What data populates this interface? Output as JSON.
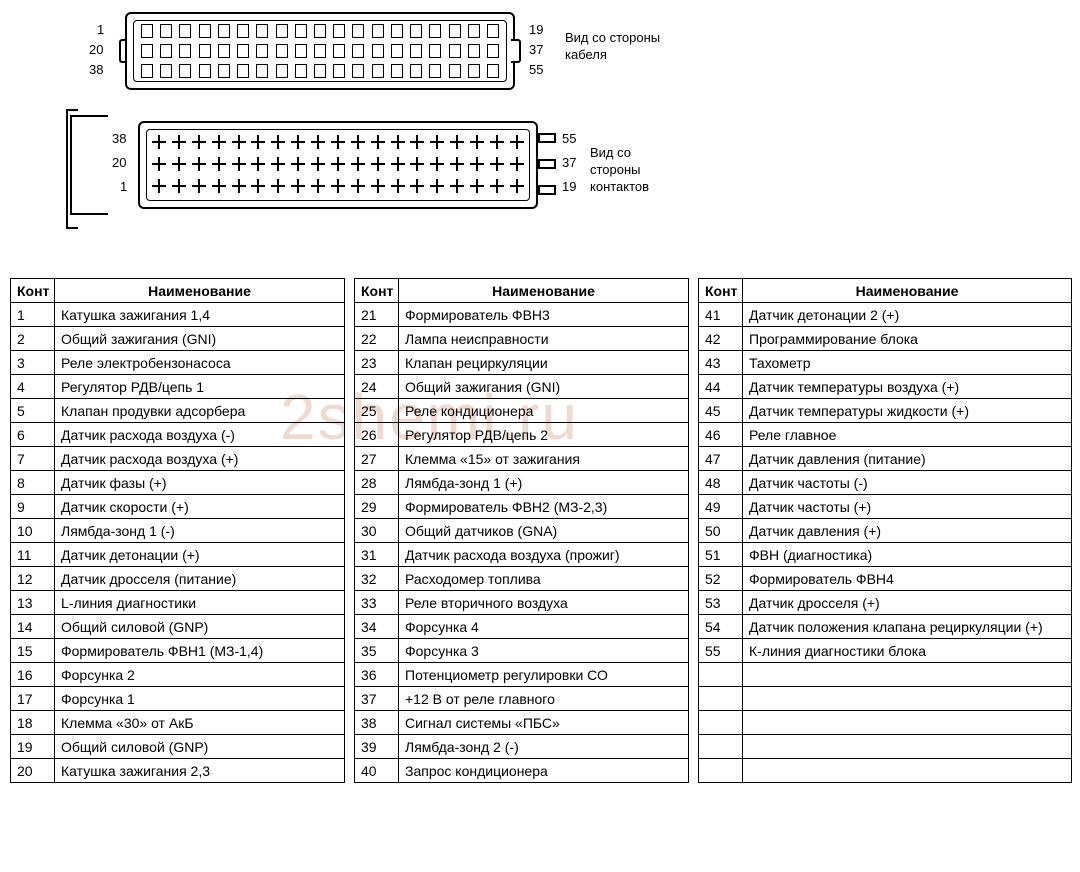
{
  "diagram": {
    "top": {
      "left_labels": [
        "1",
        "20",
        "38"
      ],
      "right_labels": [
        "19",
        "37",
        "55"
      ],
      "caption_line1": "Вид со стороны",
      "caption_line2": "кабеля",
      "pins_per_row": 19
    },
    "bottom": {
      "left_labels": [
        "38",
        "20",
        "1"
      ],
      "right_labels": [
        "55",
        "37",
        "19"
      ],
      "caption_line1": "Вид со стороны",
      "caption_line2": "контактов",
      "pins_per_row": 19
    }
  },
  "watermark": "2shemi.ru",
  "table": {
    "header_pin": "Конт",
    "header_name": "Наименование",
    "columns": [
      [
        {
          "n": "1",
          "t": "Катушка зажигания 1,4"
        },
        {
          "n": "2",
          "t": "Общий зажигания (GNI)"
        },
        {
          "n": "3",
          "t": "Реле электробензонасоса"
        },
        {
          "n": "4",
          "t": "Регулятор РДВ/цепь 1"
        },
        {
          "n": "5",
          "t": "Клапан продувки адсорбера"
        },
        {
          "n": "6",
          "t": "Датчик расхода воздуха (-)"
        },
        {
          "n": "7",
          "t": "Датчик расхода воздуха (+)"
        },
        {
          "n": "8",
          "t": "Датчик фазы (+)"
        },
        {
          "n": "9",
          "t": "Датчик скорости (+)"
        },
        {
          "n": "10",
          "t": "Лямбда-зонд 1 (-)"
        },
        {
          "n": "11",
          "t": "Датчик детонации (+)"
        },
        {
          "n": "12",
          "t": "Датчик дросселя (питание)"
        },
        {
          "n": "13",
          "t": "L-линия диагностики"
        },
        {
          "n": "14",
          "t": "Общий силовой (GNP)"
        },
        {
          "n": "15",
          "t": "Формирователь ФВН1 (МЗ-1,4)"
        },
        {
          "n": "16",
          "t": "Форсунка 2"
        },
        {
          "n": "17",
          "t": "Форсунка 1"
        },
        {
          "n": "18",
          "t": "Клемма «30» от АкБ"
        },
        {
          "n": "19",
          "t": "Общий силовой (GNP)"
        },
        {
          "n": "20",
          "t": "Катушка зажигания 2,3"
        }
      ],
      [
        {
          "n": "21",
          "t": "Формирователь ФВН3"
        },
        {
          "n": "22",
          "t": "Лампа неисправности"
        },
        {
          "n": "23",
          "t": "Клапан рециркуляции"
        },
        {
          "n": "24",
          "t": "Общий зажигания (GNI)"
        },
        {
          "n": "25",
          "t": "Реле кондиционера"
        },
        {
          "n": "26",
          "t": "Регулятор РДВ/цепь 2"
        },
        {
          "n": "27",
          "t": "Клемма «15» от зажигания"
        },
        {
          "n": "28",
          "t": "Лямбда-зонд 1 (+)"
        },
        {
          "n": "29",
          "t": "Формирователь ФВН2 (МЗ-2,3)"
        },
        {
          "n": "30",
          "t": "Общий датчиков (GNA)"
        },
        {
          "n": "31",
          "t": "Датчик расхода воздуха (прожиг)"
        },
        {
          "n": "32",
          "t": "Расходомер топлива"
        },
        {
          "n": "33",
          "t": "Реле вторичного воздуха"
        },
        {
          "n": "34",
          "t": "Форсунка 4"
        },
        {
          "n": "35",
          "t": "Форсунка 3"
        },
        {
          "n": "36",
          "t": "Потенциометр регулировки СО"
        },
        {
          "n": "37",
          "t": "+12 В от реле главного"
        },
        {
          "n": "38",
          "t": "Сигнал системы «ПБС»"
        },
        {
          "n": "39",
          "t": "Лямбда-зонд 2 (-)"
        },
        {
          "n": "40",
          "t": "Запрос кондиционера"
        }
      ],
      [
        {
          "n": "41",
          "t": "Датчик детонации 2 (+)"
        },
        {
          "n": "42",
          "t": "Программирование блока"
        },
        {
          "n": "43",
          "t": "Тахометр"
        },
        {
          "n": "44",
          "t": "Датчик температуры воздуха (+)"
        },
        {
          "n": "45",
          "t": "Датчик температуры жидкости (+)"
        },
        {
          "n": "46",
          "t": "Реле главное"
        },
        {
          "n": "47",
          "t": "Датчик давления (питание)"
        },
        {
          "n": "48",
          "t": "Датчик частоты (-)"
        },
        {
          "n": "49",
          "t": "Датчик частоты (+)"
        },
        {
          "n": "50",
          "t": "Датчик давления (+)"
        },
        {
          "n": "51",
          "t": "ФВН (диагностика)"
        },
        {
          "n": "52",
          "t": "Формирователь ФВН4"
        },
        {
          "n": "53",
          "t": "Датчик дросселя (+)"
        },
        {
          "n": "54",
          "t": "Датчик положения клапана рециркуляции (+)"
        },
        {
          "n": "55",
          "t": "К-линия диагностики блока"
        },
        {
          "n": "",
          "t": ""
        },
        {
          "n": "",
          "t": ""
        },
        {
          "n": "",
          "t": ""
        },
        {
          "n": "",
          "t": ""
        },
        {
          "n": "",
          "t": ""
        }
      ]
    ]
  },
  "style": {
    "border_color": "#000000",
    "background": "#ffffff",
    "font_size_table": 14,
    "font_size_labels": 13,
    "watermark_color": "#f0d9cf"
  }
}
